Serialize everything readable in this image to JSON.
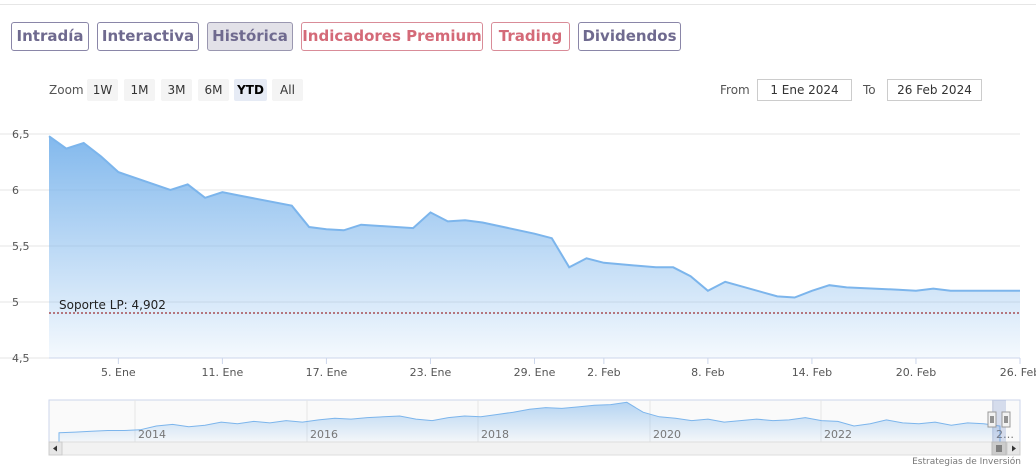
{
  "tabs": [
    {
      "label": "Intradía",
      "style": "normal"
    },
    {
      "label": "Interactiva",
      "style": "normal"
    },
    {
      "label": "Histórica",
      "style": "active"
    },
    {
      "label": "Indicadores Premium",
      "style": "premium"
    },
    {
      "label": "Trading",
      "style": "premium"
    },
    {
      "label": "Dividendos",
      "style": "normal"
    }
  ],
  "zoom": {
    "label": "Zoom",
    "buttons": [
      "1W",
      "1M",
      "3M",
      "6M",
      "YTD",
      "All"
    ],
    "selected": "YTD"
  },
  "range": {
    "from_label": "From",
    "from_value": "1 Ene 2024",
    "to_label": "To",
    "to_value": "26 Feb 2024"
  },
  "credits": "Estrategias de Inversión",
  "colors": {
    "line": "#7cb5ec",
    "support_line": "#8b0000",
    "tab_text": "#6f6a8f",
    "premium_text": "#d46a78"
  },
  "chart_data": {
    "type": "area",
    "title": "",
    "xlabel": "",
    "ylabel": "",
    "ylim": [
      4.5,
      6.5
    ],
    "y_ticks": [
      "6,5",
      "6",
      "5,5",
      "5",
      "4,5"
    ],
    "x_ticks": [
      "5. Ene",
      "11. Ene",
      "17. Ene",
      "23. Ene",
      "29. Ene",
      "2. Feb",
      "8. Feb",
      "14. Feb",
      "20. Feb",
      "26. Feb"
    ],
    "series": [
      {
        "x": [
          "2024-01-01",
          "2024-01-02",
          "2024-01-03",
          "2024-01-04",
          "2024-01-05",
          "2024-01-08",
          "2024-01-09",
          "2024-01-10",
          "2024-01-11",
          "2024-01-12",
          "2024-01-15",
          "2024-01-16",
          "2024-01-17",
          "2024-01-18",
          "2024-01-19",
          "2024-01-22",
          "2024-01-23",
          "2024-01-24",
          "2024-01-25",
          "2024-01-26",
          "2024-01-29",
          "2024-01-30",
          "2024-01-31",
          "2024-02-01",
          "2024-02-02",
          "2024-02-05",
          "2024-02-06",
          "2024-02-07",
          "2024-02-08",
          "2024-02-09",
          "2024-02-12",
          "2024-02-13",
          "2024-02-14",
          "2024-02-15",
          "2024-02-16",
          "2024-02-19",
          "2024-02-20",
          "2024-02-21",
          "2024-02-22",
          "2024-02-23",
          "2024-02-26"
        ],
        "values": [
          6.48,
          6.37,
          6.42,
          6.3,
          6.16,
          6.0,
          6.05,
          5.93,
          5.98,
          5.95,
          5.86,
          5.67,
          5.65,
          5.64,
          5.69,
          5.66,
          5.8,
          5.72,
          5.73,
          5.71,
          5.61,
          5.57,
          5.31,
          5.39,
          5.35,
          5.31,
          5.31,
          5.23,
          5.1,
          5.18,
          5.05,
          5.04,
          5.1,
          5.15,
          5.13,
          5.11,
          5.1,
          5.12,
          5.1,
          5.1,
          5.1
        ]
      }
    ],
    "support": {
      "label": "Soporte LP: 4,902",
      "value": 4.902
    },
    "navigator": {
      "type": "area",
      "year_labels": [
        "2014",
        "2016",
        "2018",
        "2020",
        "2022",
        "2…"
      ],
      "values": [
        4.2,
        4.3,
        4.4,
        4.5,
        4.5,
        4.6,
        5.1,
        5.3,
        5.0,
        5.2,
        5.6,
        5.4,
        5.7,
        5.5,
        5.8,
        5.6,
        5.9,
        6.1,
        6.0,
        6.2,
        6.3,
        6.4,
        6.0,
        5.8,
        6.2,
        6.4,
        6.3,
        6.6,
        6.9,
        7.3,
        7.5,
        7.4,
        7.6,
        7.8,
        7.9,
        8.2,
        6.9,
        6.3,
        6.1,
        5.8,
        6.0,
        5.6,
        5.8,
        6.0,
        5.8,
        5.9,
        6.2,
        5.8,
        5.7,
        5.1,
        5.4,
        5.9,
        5.5,
        5.4,
        5.6,
        5.2,
        5.5,
        5.4,
        5.1
      ],
      "ylim": [
        3.0,
        8.5
      ]
    }
  }
}
